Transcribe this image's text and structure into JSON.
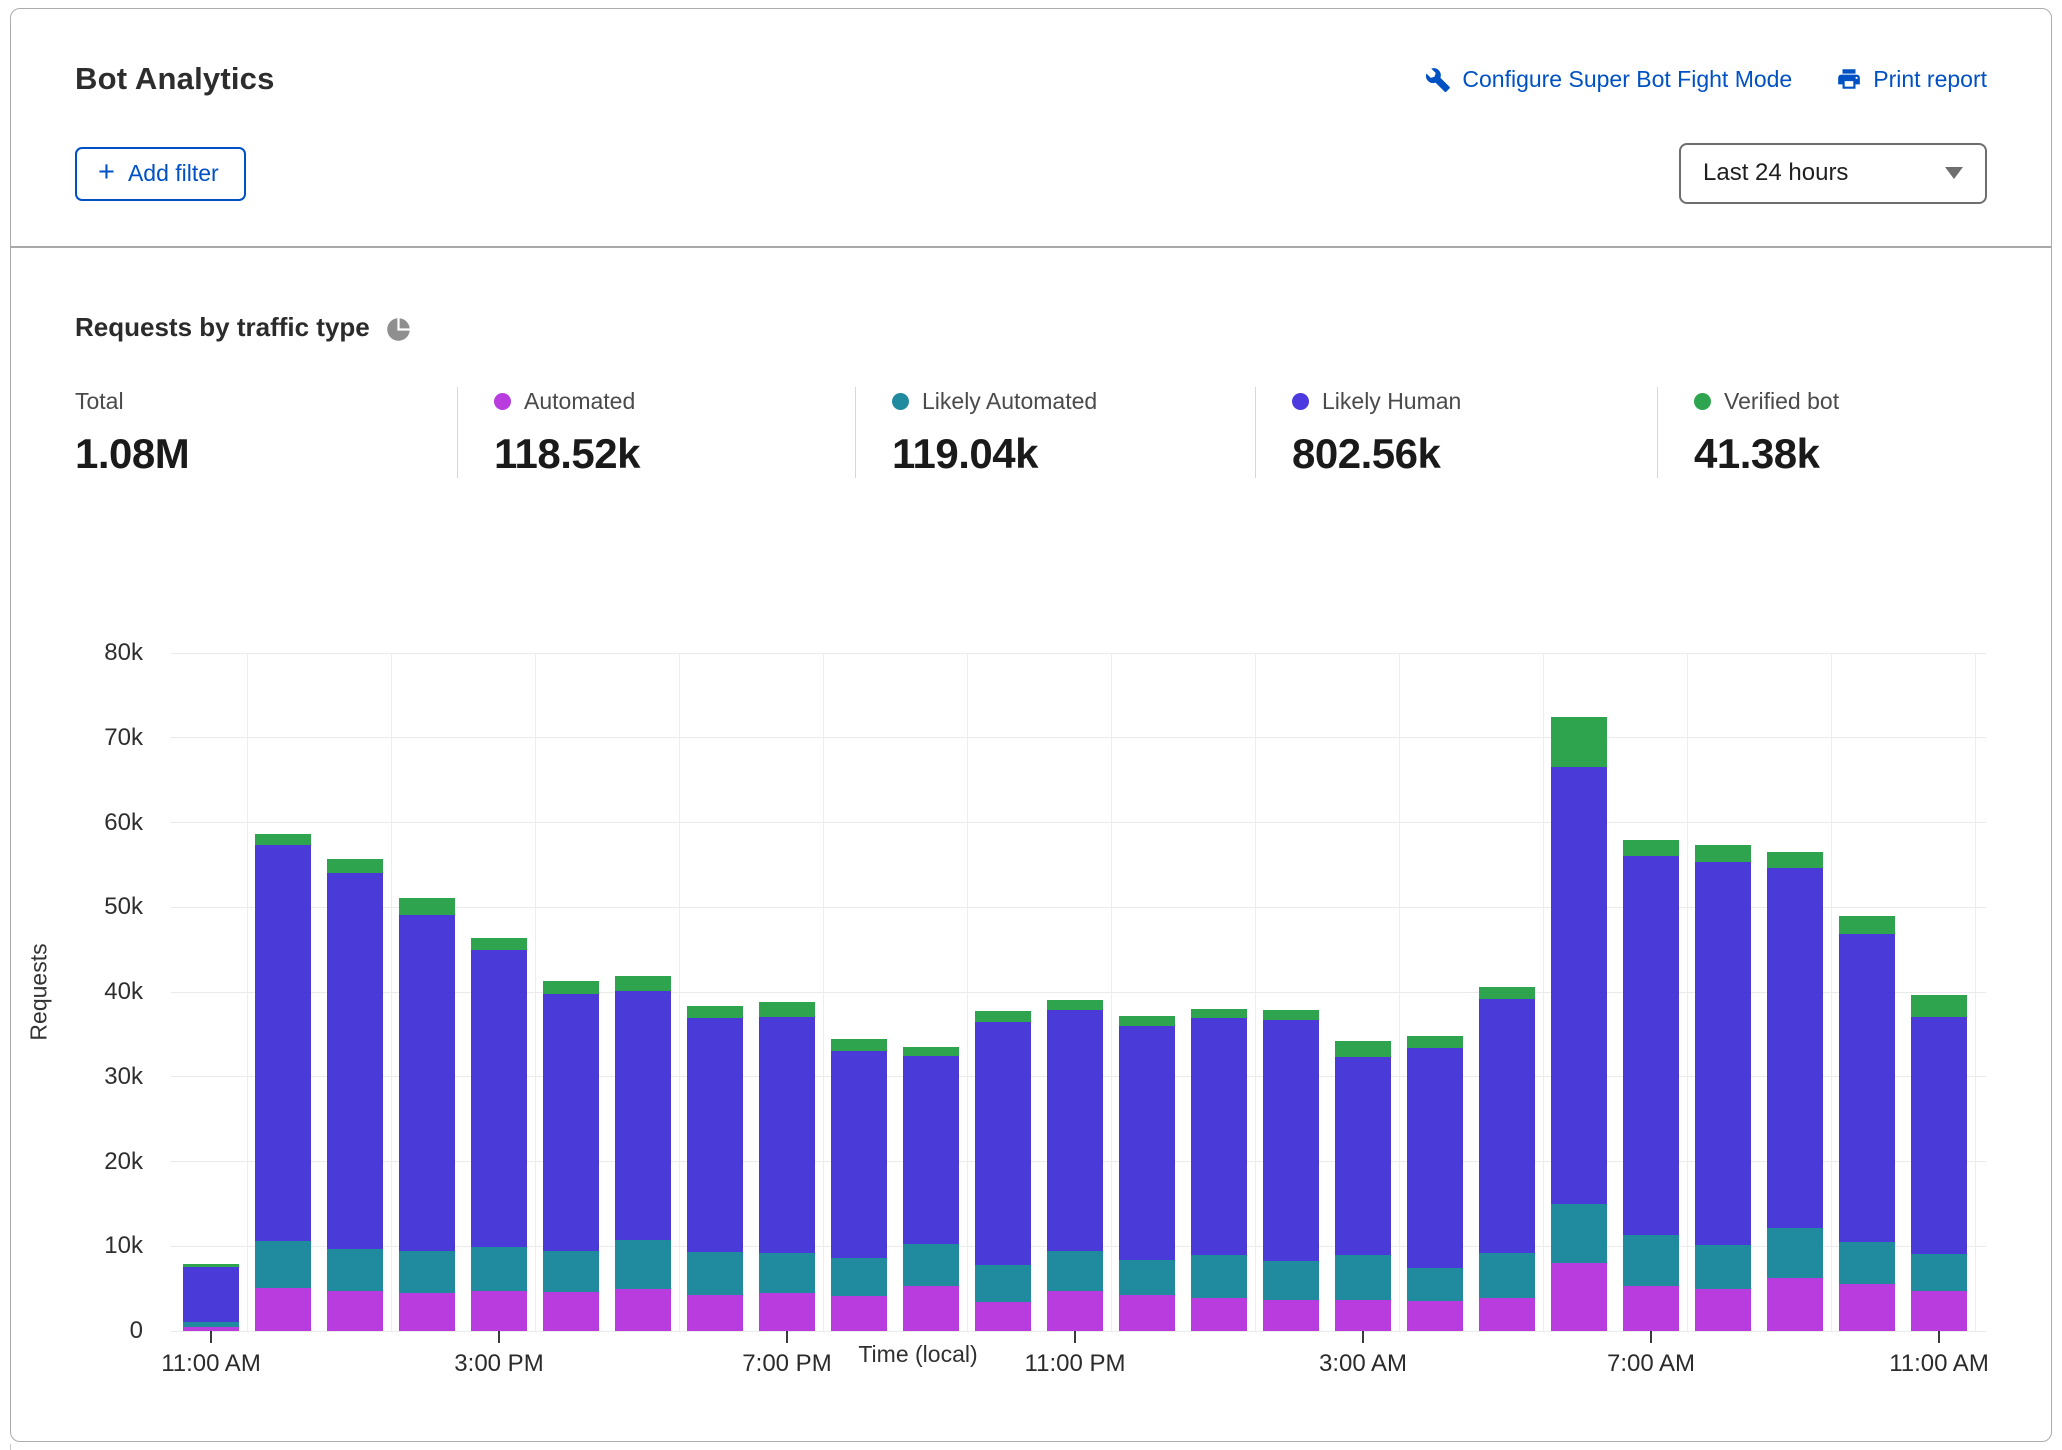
{
  "header": {
    "title": "Bot Analytics",
    "configure_label": "Configure Super Bot Fight Mode",
    "print_label": "Print report",
    "add_filter_label": "Add filter",
    "time_range": "Last 24 hours"
  },
  "section": {
    "title": "Requests by traffic type"
  },
  "stats": [
    {
      "label": "Total",
      "value": "1.08M",
      "color": null
    },
    {
      "label": "Automated",
      "value": "118.52k",
      "color": "#b93cde"
    },
    {
      "label": "Likely Automated",
      "value": "119.04k",
      "color": "#208a9e"
    },
    {
      "label": "Likely Human",
      "value": "802.56k",
      "color": "#4c3ae0"
    },
    {
      "label": "Verified bot",
      "value": "41.38k",
      "color": "#2ea44e"
    }
  ],
  "colors": {
    "link_blue": "#0051c3",
    "grid": "#eaeaea",
    "automated": "#b93cde",
    "likely_automated": "#208a9e",
    "likely_human": "#4a3ad8",
    "verified_bot": "#2ea44e"
  },
  "chart_data": {
    "type": "bar",
    "stacked": true,
    "title": "Requests by traffic type",
    "xlabel": "Time (local)",
    "ylabel": "Requests",
    "unit": "thousands of requests",
    "ymax_k": 80,
    "ytick_labels": [
      "0",
      "10k",
      "20k",
      "30k",
      "40k",
      "50k",
      "60k",
      "70k",
      "80k"
    ],
    "x": [
      "11:00 AM",
      "12:00 PM",
      "1:00 PM",
      "2:00 PM",
      "3:00 PM",
      "4:00 PM",
      "5:00 PM",
      "6:00 PM",
      "7:00 PM",
      "8:00 PM",
      "9:00 PM",
      "10:00 PM",
      "11:00 PM",
      "12:00 AM",
      "1:00 AM",
      "2:00 AM",
      "3:00 AM",
      "4:00 AM",
      "5:00 AM",
      "6:00 AM",
      "7:00 AM",
      "8:00 AM",
      "9:00 AM",
      "10:00 AM",
      "11:00 AM"
    ],
    "xtick_indices": [
      0,
      4,
      8,
      12,
      16,
      20,
      24
    ],
    "series": [
      {
        "name": "Automated",
        "color": "#b93cde",
        "values_k": [
          0.45,
          5.1,
          4.7,
          4.5,
          4.7,
          4.6,
          4.9,
          4.2,
          4.5,
          4.1,
          5.3,
          3.4,
          4.7,
          4.2,
          3.9,
          3.7,
          3.7,
          3.6,
          3.9,
          8.0,
          5.3,
          5.0,
          6.2,
          5.5,
          4.7
        ]
      },
      {
        "name": "Likely Automated",
        "color": "#208a9e",
        "values_k": [
          0.6,
          5.5,
          5.0,
          5.0,
          5.2,
          4.8,
          5.8,
          5.1,
          4.7,
          4.5,
          5.0,
          4.4,
          4.7,
          4.2,
          5.1,
          4.6,
          5.3,
          3.8,
          5.3,
          7.0,
          6.0,
          5.2,
          5.9,
          5.0,
          4.4
        ]
      },
      {
        "name": "Likely Human",
        "color": "#4a3ad8",
        "values_k": [
          6.5,
          46.7,
          44.4,
          39.6,
          35.0,
          30.4,
          29.4,
          27.6,
          27.9,
          24.5,
          22.2,
          28.7,
          28.5,
          27.6,
          27.9,
          28.4,
          23.3,
          26.0,
          30.0,
          51.5,
          44.8,
          45.1,
          42.5,
          36.3,
          28.0
        ]
      },
      {
        "name": "Verified bot",
        "color": "#2ea44e",
        "values_k": [
          0.35,
          1.4,
          1.6,
          2.0,
          1.5,
          1.5,
          1.8,
          1.5,
          1.7,
          1.4,
          1.0,
          1.3,
          1.2,
          1.2,
          1.1,
          1.2,
          1.9,
          1.4,
          1.4,
          6.0,
          1.8,
          2.1,
          1.9,
          2.2,
          2.5
        ]
      }
    ],
    "legend_position": "top",
    "grid": true
  }
}
